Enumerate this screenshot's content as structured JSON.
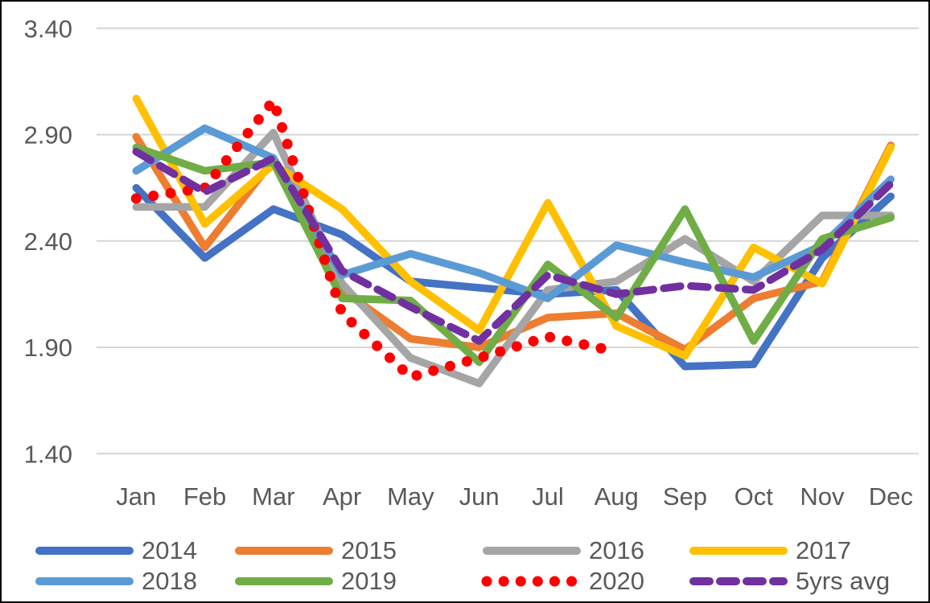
{
  "chart_data": {
    "type": "line",
    "title": "",
    "xlabel": "",
    "ylabel": "",
    "categories": [
      "Jan",
      "Feb",
      "Mar",
      "Apr",
      "May",
      "Jun",
      "Jul",
      "Aug",
      "Sep",
      "Oct",
      "Nov",
      "Dec"
    ],
    "y_ticks": [
      3.4,
      2.9,
      2.4,
      1.9,
      1.4
    ],
    "y_tick_labels": [
      "3.40",
      "2.90",
      "2.40",
      "1.90",
      "1.40"
    ],
    "ylim": [
      1.4,
      3.4
    ],
    "grid": true,
    "legend_position": "bottom",
    "axis_text_color": "#595959",
    "gridline_color": "#D6D6D6",
    "series": [
      {
        "name": "2014",
        "color": "#4472C4",
        "style": "solid",
        "values": [
          2.65,
          2.32,
          2.55,
          2.43,
          2.21,
          2.18,
          2.15,
          2.17,
          1.81,
          1.82,
          2.32,
          2.61
        ]
      },
      {
        "name": "2015",
        "color": "#ED7D31",
        "style": "solid",
        "values": [
          2.89,
          2.37,
          2.78,
          2.17,
          1.94,
          1.9,
          2.04,
          2.06,
          1.89,
          2.13,
          2.21,
          2.85
        ]
      },
      {
        "name": "2016",
        "color": "#A5A5A5",
        "style": "solid",
        "values": [
          2.56,
          2.56,
          2.91,
          2.2,
          1.85,
          1.73,
          2.17,
          2.21,
          2.41,
          2.21,
          2.52,
          2.52
        ]
      },
      {
        "name": "2017",
        "color": "#FFC000",
        "style": "solid",
        "values": [
          3.07,
          2.48,
          2.76,
          2.55,
          2.21,
          1.98,
          2.58,
          2.0,
          1.86,
          2.37,
          2.2,
          2.84
        ]
      },
      {
        "name": "2018",
        "color": "#5B9BD5",
        "style": "solid",
        "values": [
          2.73,
          2.93,
          2.79,
          2.24,
          2.34,
          2.25,
          2.13,
          2.38,
          2.3,
          2.23,
          2.38,
          2.69
        ]
      },
      {
        "name": "2019",
        "color": "#70AD47",
        "style": "solid",
        "values": [
          2.84,
          2.73,
          2.77,
          2.13,
          2.12,
          1.83,
          2.29,
          2.04,
          2.55,
          1.93,
          2.41,
          2.51
        ]
      },
      {
        "name": "2020",
        "color": "#FF0000",
        "style": "dotted",
        "values": [
          2.6,
          2.65,
          3.06,
          2.06,
          1.76,
          1.85,
          1.95,
          1.88,
          null,
          null,
          null,
          null
        ]
      },
      {
        "name": "5yrs avg",
        "color": "#7030A0",
        "style": "dashed",
        "values": [
          2.82,
          2.63,
          2.79,
          2.26,
          2.09,
          1.93,
          2.24,
          2.15,
          2.19,
          2.17,
          2.36,
          2.67
        ]
      }
    ]
  }
}
